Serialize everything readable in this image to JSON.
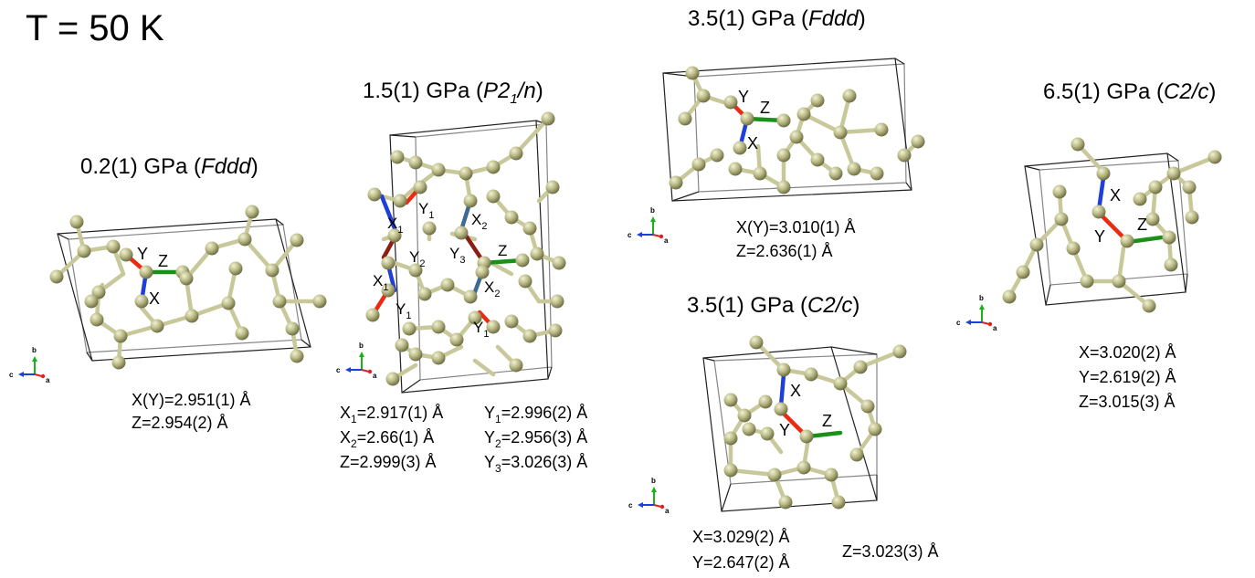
{
  "temperature_label": "T = 50 K",
  "colors": {
    "atom": "#b7b783",
    "bond": "#c8c89a",
    "x_bond": "#1e3fd8",
    "y_bond": "#ec2a12",
    "z_bond": "#1a8f1a",
    "y_dark_bond": "#8b1e12",
    "x_dark_bond": "#3b6a94"
  },
  "axis_labels": {
    "b": "b",
    "c": "c",
    "a": "a"
  },
  "panels": [
    {
      "id": "p02",
      "pressure": "0.2(1) GPa (",
      "space_group": "Fddd",
      "close": ")",
      "bond_labels": {
        "Y": "Y",
        "Z": "Z",
        "X": "X"
      },
      "distances": [
        "X(Y)=2.951(1) Å",
        "Z=2.954(2) Å"
      ]
    },
    {
      "id": "p15",
      "pressure": "1.5(1) GPa (",
      "space_group": "P2",
      "space_group_sub": "1",
      "space_group_tail": "/n",
      "close": ")",
      "bond_labels": [
        "X",
        "1",
        "Y",
        "1",
        "X",
        "2",
        "Y",
        "2",
        "Y",
        "3",
        "Z",
        "X",
        "1",
        "X",
        "2",
        "Y",
        "1",
        "Y",
        "1"
      ],
      "distances_left": [
        {
          "pre": "X",
          "sub": "1",
          "post": "=2.917(1) Å"
        },
        {
          "pre": "X",
          "sub": "2",
          "post": "=2.66(1) Å"
        },
        {
          "pre": "Z=2.999(3) Å",
          "sub": "",
          "post": ""
        }
      ],
      "distances_right": [
        {
          "pre": "Y",
          "sub": "1",
          "post": "=2.996(2) Å"
        },
        {
          "pre": "Y",
          "sub": "2",
          "post": "=2.956(3) Å"
        },
        {
          "pre": "Y",
          "sub": "3",
          "post": "=3.026(3) Å"
        }
      ]
    },
    {
      "id": "p35f",
      "pressure": "3.5(1) GPa (",
      "space_group": "Fddd",
      "close": ")",
      "bond_labels": {
        "Y": "Y",
        "Z": "Z",
        "X": "X"
      },
      "distances": [
        "X(Y)=3.010(1) Å",
        "Z=2.636(1) Å"
      ]
    },
    {
      "id": "p35c",
      "pressure": "3.5(1) GPa (",
      "space_group": "C2/c",
      "close": ")",
      "bond_labels": {
        "X": "X",
        "Y": "Y",
        "Z": "Z"
      },
      "distances": [
        "X=3.029(2) Å",
        "Y=2.647(2) Å",
        "Z=3.023(3) Å"
      ]
    },
    {
      "id": "p65",
      "pressure": "6.5(1) GPa (",
      "space_group": "C2/c",
      "close": ")",
      "bond_labels": {
        "X": "X",
        "Y": "Y",
        "Z": "Z"
      },
      "distances": [
        "X=3.020(2) Å",
        "Y=2.619(2) Å",
        "Z=3.015(3) Å"
      ]
    }
  ]
}
